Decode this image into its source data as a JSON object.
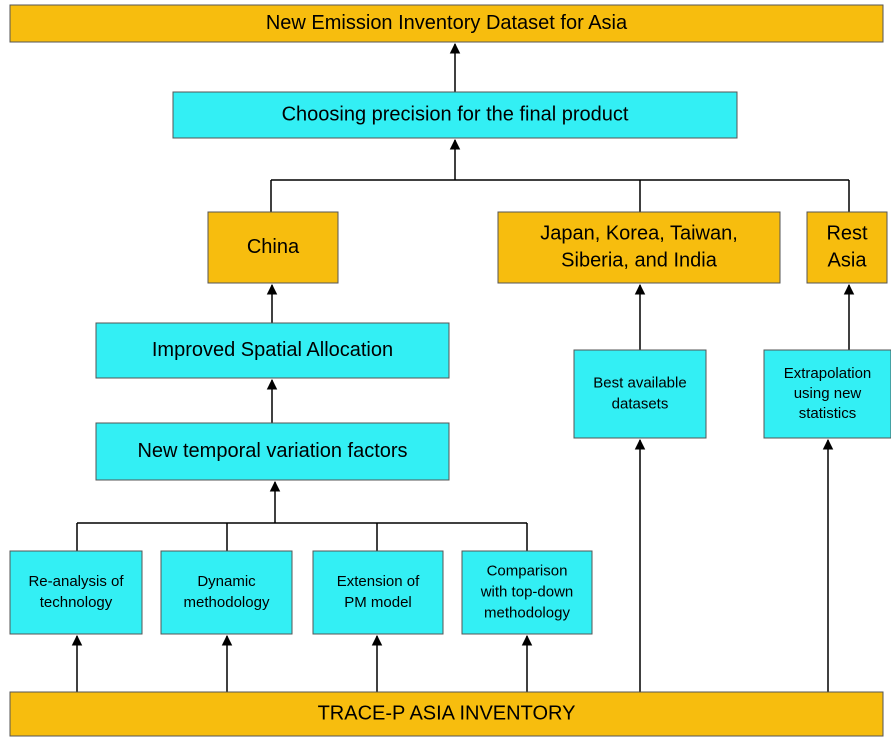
{
  "nodes": [
    {
      "label": [
        "New Emission Inventory Dataset for Asia"
      ]
    },
    {
      "label": [
        "Choosing precision for the final product"
      ]
    },
    {
      "label": [
        "China"
      ]
    },
    {
      "label": [
        "Japan, Korea, Taiwan,",
        "Siberia, and India"
      ]
    },
    {
      "label": [
        "Rest",
        "Asia"
      ]
    },
    {
      "label": [
        "Improved Spatial Allocation"
      ]
    },
    {
      "label": [
        "New temporal variation factors"
      ]
    },
    {
      "label": [
        "Best available",
        "datasets"
      ]
    },
    {
      "label": [
        "Extrapolation",
        "using new",
        "statistics"
      ]
    },
    {
      "label": [
        "Re-analysis of",
        "technology"
      ]
    },
    {
      "label": [
        "Dynamic",
        "methodology"
      ]
    },
    {
      "label": [
        "Extension of",
        "PM model"
      ]
    },
    {
      "label": [
        "Comparison",
        "with top-down",
        "methodology"
      ]
    },
    {
      "label": [
        "TRACE-P ASIA INVENTORY"
      ]
    }
  ]
}
